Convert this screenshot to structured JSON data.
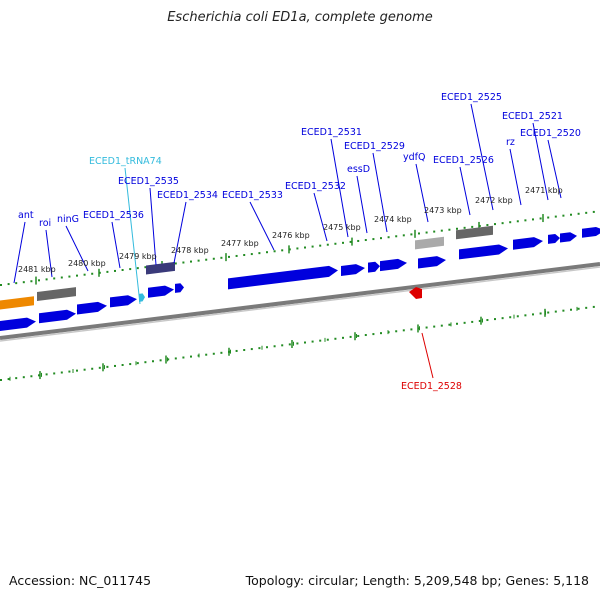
{
  "title": "Escherichia coli ED1a, complete genome",
  "footer": {
    "accession": "Accession: NC_011745",
    "topology": "Topology: circular; Length: 5,209,548 bp; Genes: 5,118"
  },
  "colors": {
    "gene_forward": "#0000dd",
    "gene_reverse": "#dd0000",
    "trna": "#33bbdd",
    "rrna_orange": "#ee8800",
    "pseudo_gray": "#666666",
    "ruler_tick": "#228b22",
    "backbone": "#888888"
  },
  "ruler": [
    {
      "label": "2481 kbp"
    },
    {
      "label": "2480 kbp"
    },
    {
      "label": "2479 kbp"
    },
    {
      "label": "2478 kbp"
    },
    {
      "label": "2477 kbp"
    },
    {
      "label": "2476 kbp"
    },
    {
      "label": "2475 kbp"
    },
    {
      "label": "2474 kbp"
    },
    {
      "label": "2473 kbp"
    },
    {
      "label": "2472 kbp"
    },
    {
      "label": "2471 kbp"
    }
  ],
  "gene_labels": [
    {
      "label": "ant",
      "type": "forward"
    },
    {
      "label": "roi",
      "type": "forward"
    },
    {
      "label": "ninG",
      "type": "forward"
    },
    {
      "label": "ECED1_2536",
      "type": "forward"
    },
    {
      "label": "ECED1_tRNA74",
      "type": "trna"
    },
    {
      "label": "ECED1_2535",
      "type": "forward"
    },
    {
      "label": "ECED1_2534",
      "type": "forward"
    },
    {
      "label": "ECED1_2533",
      "type": "forward"
    },
    {
      "label": "ECED1_2532",
      "type": "forward"
    },
    {
      "label": "ECED1_2531",
      "type": "forward"
    },
    {
      "label": "essD",
      "type": "forward"
    },
    {
      "label": "ECED1_2529",
      "type": "forward"
    },
    {
      "label": "ydfQ",
      "type": "forward"
    },
    {
      "label": "ECED1_2526",
      "type": "forward"
    },
    {
      "label": "ECED1_2525",
      "type": "forward"
    },
    {
      "label": "rz",
      "type": "forward"
    },
    {
      "label": "ECED1_2521",
      "type": "forward"
    },
    {
      "label": "ECED1_2520",
      "type": "forward"
    },
    {
      "label": "ECED1_2528",
      "type": "reverse"
    }
  ]
}
